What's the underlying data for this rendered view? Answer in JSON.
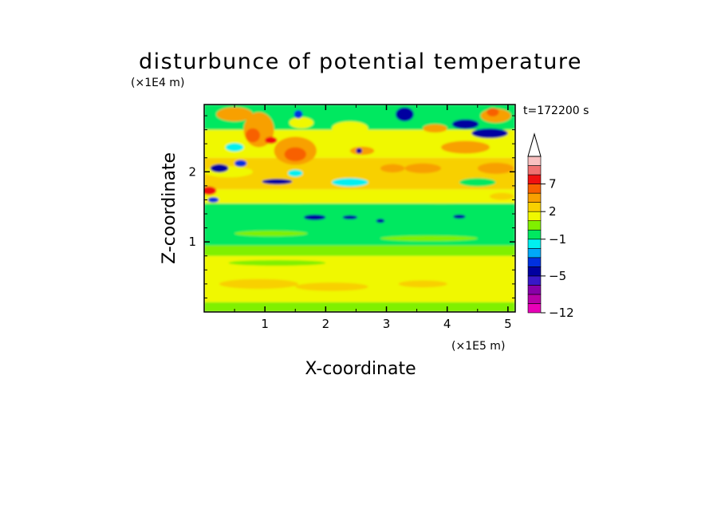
{
  "chart_data": {
    "type": "heatmap",
    "title": "disturbunce of potential temperature",
    "xlabel": "X-coordinate",
    "ylabel": "Z-coordinate",
    "x_unit": "(×1E5 m)",
    "y_unit": "(×1E4 m)",
    "time_label": "t=172200 s",
    "xlim": [
      0,
      5.12
    ],
    "ylim": [
      0,
      2.96
    ],
    "x_ticks": [
      {
        "value": 1,
        "label": "1"
      },
      {
        "value": 2,
        "label": "2"
      },
      {
        "value": 3,
        "label": "3"
      },
      {
        "value": 4,
        "label": "4"
      },
      {
        "value": 5,
        "label": "5"
      }
    ],
    "y_ticks": [
      {
        "value": 1,
        "label": "1"
      },
      {
        "value": 2,
        "label": "2"
      }
    ],
    "colorbar": {
      "extend_max": true,
      "levels": [
        -12,
        -11,
        -9,
        -7,
        -5,
        -4,
        -3,
        -2,
        -1,
        0,
        1,
        2,
        3,
        5,
        7,
        9,
        11
      ],
      "colors": [
        "#e800b8",
        "#b800a8",
        "#8800a8",
        "#3818c8",
        "#0000a0",
        "#0030e0",
        "#00a8f8",
        "#00f0f0",
        "#00e860",
        "#80f000",
        "#f0f800",
        "#f8d000",
        "#f8a000",
        "#f86000",
        "#f01010",
        "#f07070",
        "#f8c0c0"
      ],
      "tick_labels": [
        {
          "value": 7,
          "label": "7"
        },
        {
          "value": 2,
          "label": "2"
        },
        {
          "value": -1,
          "label": "−1"
        },
        {
          "value": -5,
          "label": "−5"
        },
        {
          "value": -12,
          "label": "−12"
        }
      ]
    },
    "field_bands": [
      {
        "z": [
          0.0,
          0.14
        ],
        "level": 0.5
      },
      {
        "z": [
          0.14,
          0.8
        ],
        "level": 1.5
      },
      {
        "z": [
          0.8,
          0.95
        ],
        "level": 0.5
      },
      {
        "z": [
          0.95,
          1.55
        ],
        "level": -0.5
      },
      {
        "z": [
          1.55,
          1.75
        ],
        "level": 1.5
      },
      {
        "z": [
          1.75,
          2.2
        ],
        "level": 2.5
      },
      {
        "z": [
          2.2,
          2.6
        ],
        "level": 1.5
      },
      {
        "z": [
          2.6,
          2.96
        ],
        "level": -0.5
      }
    ],
    "features": [
      {
        "x": 0.9,
        "z": 0.4,
        "rx": 0.65,
        "rz": 0.07,
        "level": 2.5
      },
      {
        "x": 2.1,
        "z": 0.36,
        "rx": 0.6,
        "rz": 0.06,
        "level": 2.5
      },
      {
        "x": 3.6,
        "z": 0.4,
        "rx": 0.4,
        "rz": 0.05,
        "level": 2.5
      },
      {
        "x": 1.2,
        "z": 0.7,
        "rx": 0.8,
        "rz": 0.04,
        "level": 0.5
      },
      {
        "x": 0.08,
        "z": 1.73,
        "rx": 0.12,
        "rz": 0.06,
        "level": 7.5
      },
      {
        "x": 0.15,
        "z": 1.6,
        "rx": 0.09,
        "rz": 0.04,
        "level": -3.5
      },
      {
        "x": 1.5,
        "z": 1.62,
        "rx": 0.8,
        "rz": 0.07,
        "level": 1.5
      },
      {
        "x": 3.9,
        "z": 1.6,
        "rx": 0.7,
        "rz": 0.05,
        "level": 1.5
      },
      {
        "x": 1.82,
        "z": 1.35,
        "rx": 0.18,
        "rz": 0.04,
        "level": -4.5
      },
      {
        "x": 2.4,
        "z": 1.35,
        "rx": 0.12,
        "rz": 0.03,
        "level": -4.5
      },
      {
        "x": 2.9,
        "z": 1.3,
        "rx": 0.07,
        "rz": 0.03,
        "level": -4.5
      },
      {
        "x": 4.2,
        "z": 1.36,
        "rx": 0.1,
        "rz": 0.03,
        "level": -4.5
      },
      {
        "x": 1.1,
        "z": 1.12,
        "rx": 0.6,
        "rz": 0.04,
        "level": 0.5
      },
      {
        "x": 3.7,
        "z": 1.05,
        "rx": 0.8,
        "rz": 0.04,
        "level": 0.5
      },
      {
        "x": 0.4,
        "z": 2.0,
        "rx": 0.4,
        "rz": 0.08,
        "level": 1.5
      },
      {
        "x": 0.25,
        "z": 2.05,
        "rx": 0.15,
        "rz": 0.06,
        "level": -4.5
      },
      {
        "x": 0.6,
        "z": 2.12,
        "rx": 0.1,
        "rz": 0.05,
        "level": -3.5
      },
      {
        "x": 1.2,
        "z": 1.86,
        "rx": 0.25,
        "rz": 0.04,
        "level": -4.5
      },
      {
        "x": 1.5,
        "z": 2.3,
        "rx": 0.35,
        "rz": 0.2,
        "level": 3.5
      },
      {
        "x": 1.5,
        "z": 2.25,
        "rx": 0.18,
        "rz": 0.1,
        "level": 5.5
      },
      {
        "x": 0.9,
        "z": 2.6,
        "rx": 0.25,
        "rz": 0.25,
        "level": 3.5
      },
      {
        "x": 0.8,
        "z": 2.52,
        "rx": 0.12,
        "rz": 0.1,
        "level": 5.5
      },
      {
        "x": 0.5,
        "z": 2.82,
        "rx": 0.3,
        "rz": 0.1,
        "level": 3.5
      },
      {
        "x": 1.6,
        "z": 2.7,
        "rx": 0.2,
        "rz": 0.08,
        "level": 1.5
      },
      {
        "x": 1.55,
        "z": 2.82,
        "rx": 0.07,
        "rz": 0.06,
        "level": -3.5
      },
      {
        "x": 1.5,
        "z": 1.98,
        "rx": 0.12,
        "rz": 0.05,
        "level": -1.5
      },
      {
        "x": 2.4,
        "z": 1.85,
        "rx": 0.3,
        "rz": 0.06,
        "level": -1.5
      },
      {
        "x": 2.4,
        "z": 2.62,
        "rx": 0.3,
        "rz": 0.1,
        "level": 1.5
      },
      {
        "x": 2.6,
        "z": 2.3,
        "rx": 0.2,
        "rz": 0.06,
        "level": 3.5
      },
      {
        "x": 3.1,
        "z": 2.05,
        "rx": 0.2,
        "rz": 0.06,
        "level": 3.5
      },
      {
        "x": 3.3,
        "z": 2.82,
        "rx": 0.15,
        "rz": 0.1,
        "level": -4.5
      },
      {
        "x": 3.2,
        "z": 2.45,
        "rx": 0.25,
        "rz": 0.08,
        "level": 1.5
      },
      {
        "x": 2.55,
        "z": 2.3,
        "rx": 0.05,
        "rz": 0.04,
        "level": -4.5
      },
      {
        "x": 3.6,
        "z": 2.05,
        "rx": 0.3,
        "rz": 0.07,
        "level": 3.5
      },
      {
        "x": 3.8,
        "z": 2.62,
        "rx": 0.2,
        "rz": 0.06,
        "level": 3.5
      },
      {
        "x": 4.3,
        "z": 2.35,
        "rx": 0.4,
        "rz": 0.09,
        "level": 3.5
      },
      {
        "x": 4.3,
        "z": 2.68,
        "rx": 0.22,
        "rz": 0.07,
        "level": -4.5
      },
      {
        "x": 4.7,
        "z": 2.55,
        "rx": 0.3,
        "rz": 0.07,
        "level": -4.5
      },
      {
        "x": 4.8,
        "z": 2.8,
        "rx": 0.25,
        "rz": 0.1,
        "level": 3.5
      },
      {
        "x": 4.75,
        "z": 2.85,
        "rx": 0.1,
        "rz": 0.06,
        "level": 5.5
      },
      {
        "x": 4.8,
        "z": 2.05,
        "rx": 0.3,
        "rz": 0.08,
        "level": 3.5
      },
      {
        "x": 4.5,
        "z": 1.85,
        "rx": 0.3,
        "rz": 0.06,
        "level": -0.5
      },
      {
        "x": 4.9,
        "z": 1.65,
        "rx": 0.2,
        "rz": 0.05,
        "level": 2.5
      },
      {
        "x": 0.5,
        "z": 2.35,
        "rx": 0.15,
        "rz": 0.06,
        "level": -1.5
      },
      {
        "x": 1.1,
        "z": 2.45,
        "rx": 0.1,
        "rz": 0.05,
        "level": 7.5
      }
    ]
  }
}
